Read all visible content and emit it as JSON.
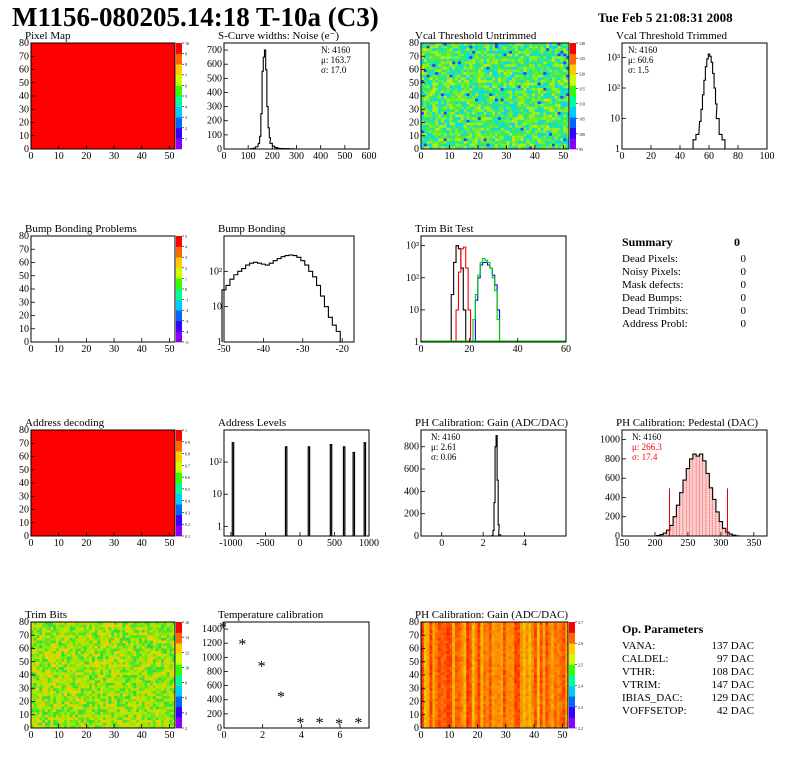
{
  "header": {
    "title": "M1156-080205.14:18 T-10a (C3)",
    "datetime": "Tue Feb  5 21:08:31 2008"
  },
  "summary": {
    "title": "Summary",
    "total": "0",
    "rows": [
      {
        "label": "Dead Pixels:",
        "value": "0"
      },
      {
        "label": "Noisy Pixels:",
        "value": "0"
      },
      {
        "label": "Mask defects:",
        "value": "0"
      },
      {
        "label": "Dead Bumps:",
        "value": "0"
      },
      {
        "label": "Dead Trimbits:",
        "value": "0"
      },
      {
        "label": "Address Probl:",
        "value": "0"
      }
    ]
  },
  "op_params": {
    "title": "Op. Parameters",
    "rows": [
      {
        "label": "VANA:",
        "value": "137 DAC"
      },
      {
        "label": "CALDEL:",
        "value": "97 DAC"
      },
      {
        "label": "VTHR:",
        "value": "108 DAC"
      },
      {
        "label": "VTRIM:",
        "value": "147 DAC"
      },
      {
        "label": "IBIAS_DAC:",
        "value": "129 DAC"
      },
      {
        "label": "VOFFSETOP:",
        "value": "42 DAC"
      }
    ]
  },
  "chart_data": [
    {
      "id": "pixel-map",
      "type": "heatmap",
      "title": "Pixel Map",
      "xlim": [
        0,
        52
      ],
      "ylim": [
        0,
        80
      ],
      "xticks": [
        0,
        10,
        20,
        30,
        40,
        50
      ],
      "yticks": [
        0,
        10,
        20,
        30,
        40,
        50,
        60,
        70,
        80
      ],
      "fill": "uniform",
      "color": "#ff0000",
      "zlim": [
        0,
        10
      ],
      "zticks": [
        1,
        2,
        3,
        4,
        5,
        6,
        7,
        8,
        9,
        10
      ]
    },
    {
      "id": "scurve-widths",
      "type": "histogram",
      "title": "S-Curve widths: Noise (e⁻)",
      "xlim": [
        0,
        600
      ],
      "ylim": [
        0,
        750
      ],
      "xticks": [
        0,
        100,
        200,
        300,
        400,
        500,
        600
      ],
      "yticks": [
        0,
        100,
        200,
        300,
        400,
        500,
        600,
        700
      ],
      "stats": [
        "N: 4160",
        "μ: 163.7",
        "σ: 17.0"
      ],
      "series": [
        {
          "color": "#000000",
          "x": [
            100,
            115,
            125,
            135,
            145,
            150,
            155,
            160,
            165,
            170,
            175,
            180,
            185,
            190,
            195,
            205,
            215,
            225,
            240,
            260,
            280,
            300
          ],
          "y": [
            0,
            2,
            5,
            15,
            40,
            90,
            250,
            550,
            650,
            700,
            560,
            300,
            150,
            80,
            40,
            20,
            10,
            5,
            3,
            2,
            1,
            0
          ]
        }
      ]
    },
    {
      "id": "vcal-untrimmed",
      "type": "heatmap",
      "title": "Vcal Threshold Untrimmed",
      "xlim": [
        0,
        52
      ],
      "ylim": [
        0,
        80
      ],
      "xticks": [
        0,
        10,
        20,
        30,
        40,
        50
      ],
      "yticks": [
        0,
        10,
        20,
        30,
        40,
        50,
        60,
        70,
        80
      ],
      "fill": "noise",
      "palette": "cyan-green",
      "zlim": [
        95,
        130
      ],
      "zticks": [
        95,
        100,
        105,
        110,
        115,
        120,
        125,
        130
      ]
    },
    {
      "id": "vcal-trimmed",
      "type": "histogram",
      "title": "Vcal Threshold Trimmed",
      "xlim": [
        0,
        100
      ],
      "ylim": [
        1,
        3000
      ],
      "ylog": true,
      "xticks": [
        0,
        20,
        40,
        60,
        80,
        100
      ],
      "ytickvals": [
        1,
        10,
        100,
        1000
      ],
      "yticks": [
        "1",
        "10",
        "10²",
        "10³"
      ],
      "stats": [
        "N: 4160",
        "μ: 60.6",
        "σ:  1.5"
      ],
      "series": [
        {
          "color": "#000000",
          "x": [
            48,
            50,
            52,
            54,
            55,
            56,
            57,
            58,
            59,
            60,
            61,
            62,
            63,
            64,
            65,
            66,
            68,
            70,
            72
          ],
          "y": [
            1,
            2,
            3,
            8,
            20,
            60,
            180,
            500,
            900,
            1300,
            1100,
            700,
            300,
            100,
            30,
            10,
            3,
            2,
            1
          ]
        }
      ]
    },
    {
      "id": "bump-bonding-problems",
      "type": "heatmap",
      "title": "Bump Bonding Problems",
      "xlim": [
        0,
        52
      ],
      "ylim": [
        0,
        80
      ],
      "xticks": [
        0,
        10,
        20,
        30,
        40,
        50
      ],
      "yticks": [
        0,
        10,
        20,
        30,
        40,
        50,
        60,
        70,
        80
      ],
      "fill": "none",
      "zlim": [
        -5,
        5
      ],
      "zticks": [
        -5,
        -4,
        -3,
        -2,
        -1,
        0,
        1,
        2,
        3,
        4,
        5
      ]
    },
    {
      "id": "bump-bonding",
      "type": "histogram",
      "title": "Bump Bonding",
      "xlim": [
        -50,
        -17
      ],
      "ylim": [
        1,
        1000
      ],
      "ylog": true,
      "xticks": [
        -50,
        -40,
        -30,
        -20
      ],
      "ytickvals": [
        1,
        10,
        100
      ],
      "yticks": [
        "1",
        "10",
        "10²"
      ],
      "series": [
        {
          "color": "#000000",
          "x": [
            -50,
            -49,
            -48,
            -47,
            -46,
            -45,
            -44,
            -43,
            -42,
            -41,
            -40,
            -39,
            -38,
            -37,
            -36,
            -35,
            -34,
            -33,
            -32,
            -31,
            -30,
            -29,
            -28,
            -27,
            -26,
            -25,
            -24,
            -23,
            -22,
            -21,
            -20
          ],
          "y": [
            30,
            40,
            60,
            80,
            100,
            120,
            150,
            170,
            180,
            170,
            160,
            150,
            170,
            200,
            230,
            260,
            280,
            290,
            280,
            250,
            200,
            150,
            100,
            70,
            40,
            20,
            10,
            5,
            3,
            2,
            1
          ]
        }
      ]
    },
    {
      "id": "trim-bit-test",
      "type": "histogram",
      "title": "Trim Bit Test",
      "xlim": [
        0,
        60
      ],
      "ylim": [
        1,
        2000
      ],
      "ylog": true,
      "xticks": [
        0,
        20,
        40,
        60
      ],
      "ytickvals": [
        1,
        10,
        100,
        1000
      ],
      "yticks": [
        "1",
        "10",
        "10²",
        "10³"
      ],
      "series": [
        {
          "color": "#000000",
          "x": [
            12,
            13,
            14,
            15,
            16,
            17,
            18,
            19
          ],
          "y": [
            1,
            30,
            300,
            1000,
            800,
            200,
            10,
            1
          ]
        },
        {
          "color": "#ff0000",
          "x": [
            14,
            15,
            16,
            17,
            18,
            19,
            20,
            21
          ],
          "y": [
            1,
            10,
            150,
            800,
            900,
            200,
            10,
            1
          ]
        },
        {
          "color": "#0000ff",
          "x": [
            22,
            23,
            24,
            25,
            26,
            27,
            28,
            29,
            30,
            31,
            32,
            33
          ],
          "y": [
            1,
            20,
            100,
            250,
            300,
            300,
            250,
            200,
            120,
            60,
            10,
            1
          ]
        },
        {
          "color": "#00cc00",
          "x": [
            21,
            22,
            23,
            24,
            25,
            26,
            27,
            28,
            29,
            30,
            31,
            32,
            33
          ],
          "y": [
            1,
            5,
            30,
            120,
            300,
            400,
            350,
            300,
            200,
            100,
            40,
            5,
            1
          ]
        }
      ]
    },
    {
      "id": "address-decoding",
      "type": "heatmap",
      "title": "Address decoding",
      "xlim": [
        0,
        52
      ],
      "ylim": [
        0,
        80
      ],
      "xticks": [
        0,
        10,
        20,
        30,
        40,
        50
      ],
      "yticks": [
        0,
        10,
        20,
        30,
        40,
        50,
        60,
        70,
        80
      ],
      "fill": "uniform",
      "color": "#ff0000",
      "zlim": [
        0.1,
        1
      ],
      "zticks": [
        0.1,
        0.2,
        0.3,
        0.4,
        0.5,
        0.6,
        0.7,
        0.8,
        0.9,
        1
      ]
    },
    {
      "id": "address-levels",
      "type": "histogram",
      "title": "Address Levels",
      "xlim": [
        -1100,
        1000
      ],
      "ylim": [
        0.5,
        1000
      ],
      "ylog": true,
      "xticks": [
        -1000,
        -500,
        0,
        500,
        1000
      ],
      "ytickvals": [
        1,
        10,
        100
      ],
      "yticks": [
        "1",
        "10",
        "10²"
      ],
      "series": [
        {
          "color": "#000000",
          "peaks": [
            [
              -980,
              -960,
              400
            ],
            [
              -210,
              -190,
              300
            ],
            [
              120,
              140,
              300
            ],
            [
              440,
              460,
              350
            ],
            [
              630,
              650,
              300
            ],
            [
              770,
              790,
              200
            ],
            [
              930,
              950,
              400
            ]
          ]
        }
      ]
    },
    {
      "id": "ph-gain",
      "type": "histogram",
      "title": "PH Calibration: Gain (ADC/DAC)",
      "xlim": [
        -1,
        6
      ],
      "ylim": [
        0,
        950
      ],
      "xticks": [
        0,
        2,
        4
      ],
      "yticks": [
        0,
        200,
        400,
        600,
        800
      ],
      "stats": [
        "N: 4160",
        "μ: 2.61",
        "σ: 0.06"
      ],
      "series": [
        {
          "color": "#000000",
          "x": [
            2.35,
            2.45,
            2.5,
            2.55,
            2.6,
            2.65,
            2.7,
            2.75,
            2.8,
            2.9
          ],
          "y": [
            0,
            5,
            50,
            300,
            800,
            900,
            500,
            100,
            10,
            0
          ]
        }
      ]
    },
    {
      "id": "ph-pedestal",
      "type": "histogram",
      "title": "PH Calibration: Pedestal (DAC)",
      "xlim": [
        150,
        370
      ],
      "ylim": [
        0,
        1100
      ],
      "xticks": [
        150,
        200,
        250,
        300,
        350
      ],
      "yticks": [
        0,
        200,
        400,
        600,
        800,
        1000
      ],
      "stats": [
        "N: 4160",
        "μ: 266.3",
        "σ: 17.4"
      ],
      "stats_colors": [
        "#000000",
        "#ff0000",
        "#ff0000"
      ],
      "fit_markers": [
        222,
        310
      ],
      "series": [
        {
          "color": "#000000",
          "x": [
            205,
            210,
            215,
            220,
            225,
            230,
            235,
            240,
            245,
            250,
            255,
            260,
            265,
            270,
            275,
            280,
            285,
            290,
            295,
            300,
            305,
            310,
            315,
            320,
            325
          ],
          "y": [
            5,
            15,
            30,
            60,
            110,
            200,
            320,
            450,
            580,
            700,
            800,
            850,
            830,
            850,
            780,
            650,
            500,
            380,
            250,
            150,
            80,
            40,
            20,
            8,
            2
          ]
        }
      ]
    },
    {
      "id": "trim-bits",
      "type": "heatmap",
      "title": "Trim Bits",
      "xlim": [
        0,
        52
      ],
      "ylim": [
        0,
        80
      ],
      "xticks": [
        0,
        10,
        20,
        30,
        40,
        50
      ],
      "yticks": [
        0,
        10,
        20,
        30,
        40,
        50,
        60,
        70,
        80
      ],
      "fill": "noise",
      "palette": "green-yellow",
      "zlim": [
        2,
        16
      ],
      "zticks": [
        2,
        4,
        6,
        8,
        10,
        12,
        14,
        16
      ]
    },
    {
      "id": "temperature-calibration",
      "type": "scatter",
      "title": "Temperature calibration",
      "xlim": [
        0,
        7.5
      ],
      "ylim": [
        0,
        1500
      ],
      "xticks": [
        0,
        2,
        4,
        6
      ],
      "yticks": [
        0,
        200,
        400,
        600,
        800,
        1000,
        1200,
        1400
      ],
      "series": [
        {
          "marker": "*",
          "x": [
            0,
            1,
            2,
            3,
            4,
            5,
            6,
            7
          ],
          "y": [
            1420,
            1180,
            870,
            440,
            70,
            70,
            60,
            70
          ]
        }
      ]
    },
    {
      "id": "ph-gain-map",
      "type": "heatmap",
      "title": "PH Calibration: Gain (ADC/DAC)",
      "xlim": [
        0,
        52
      ],
      "ylim": [
        0,
        80
      ],
      "xticks": [
        0,
        10,
        20,
        30,
        40,
        50
      ],
      "yticks": [
        0,
        10,
        20,
        30,
        40,
        50,
        60,
        70,
        80
      ],
      "fill": "columns",
      "palette": "orange-red",
      "zlim": [
        2.2,
        2.7
      ],
      "zticks": [
        2.2,
        2.3,
        2.4,
        2.5,
        2.6,
        2.7
      ]
    }
  ]
}
